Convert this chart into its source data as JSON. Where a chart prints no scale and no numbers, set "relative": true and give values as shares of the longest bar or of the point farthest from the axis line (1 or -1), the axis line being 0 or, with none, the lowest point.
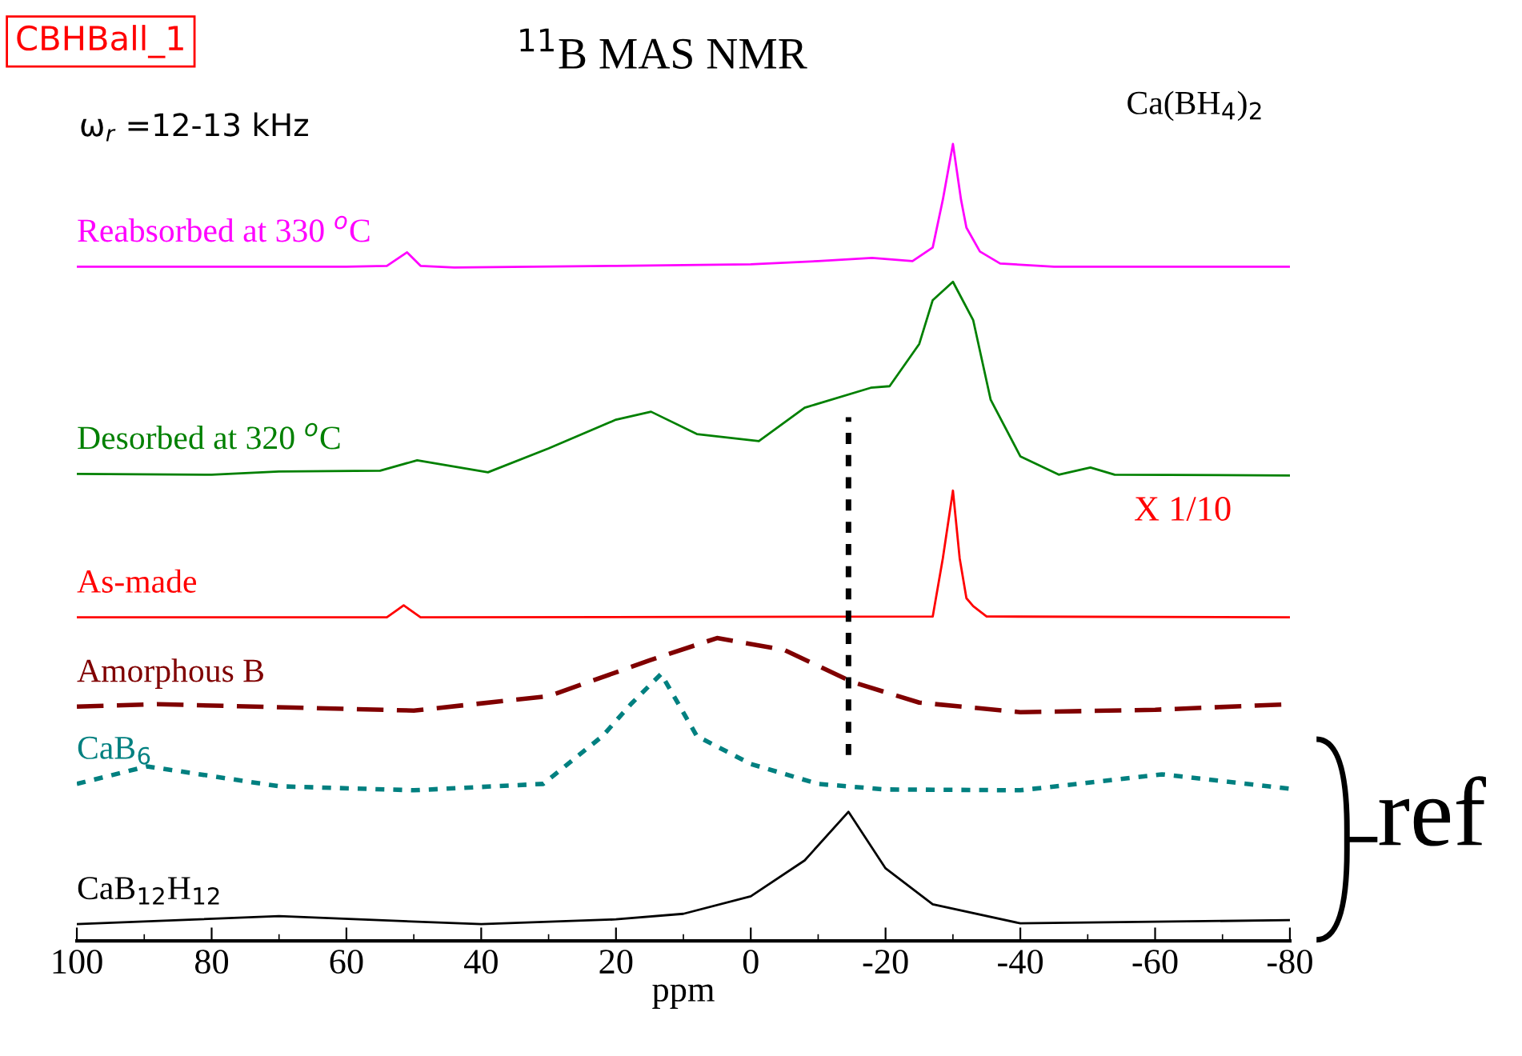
{
  "chart_data": {
    "type": "line",
    "title": "$^{11}$B MAS NMR",
    "xlabel": "ppm",
    "relative": true,
    "xlim": [
      100,
      -80
    ],
    "xticks": [
      100,
      80,
      60,
      40,
      20,
      0,
      -20,
      -40,
      -60,
      -80
    ],
    "tick_labels": "x",
    "grid": false,
    "legend": false,
    "marker": "none",
    "annotations": [
      "CBHBall_1",
      "ω$_{r}$ =12-13 kHz",
      "Ca(BH$_{4}$)$_{2}$",
      "X 1/10",
      "ref"
    ],
    "ref_lines": [
      {
        "axis": "x",
        "value": -14.5,
        "color": "#000000",
        "line_style": "dotted"
      }
    ],
    "series": [
      {
        "name": "Reabsorbed at 330 $^{o}$C",
        "color": "#ff00ff",
        "line_style": "solid",
        "x": [
          100,
          60,
          54,
          51,
          49,
          44,
          20,
          0,
          -10,
          -18,
          -24,
          -27,
          -28.5,
          -30,
          -31.2,
          -32,
          -34,
          -37,
          -45,
          -80
        ],
        "values": [
          0.846,
          0.846,
          0.847,
          0.864,
          0.847,
          0.845,
          0.847,
          0.849,
          0.853,
          0.857,
          0.853,
          0.87,
          0.93,
          1.0,
          0.93,
          0.895,
          0.865,
          0.85,
          0.846,
          0.846
        ]
      },
      {
        "name": "Desorbed at 320 $^{o}$C",
        "color": "#008000",
        "line_style": "solid",
        "x": [
          100,
          80,
          70,
          55,
          49.5,
          39,
          30,
          20,
          14.8,
          8,
          -1.2,
          -8,
          -17.8,
          -20.6,
          -25,
          -27,
          -30,
          -33,
          -35.6,
          -40,
          -45.7,
          -50.4,
          -54,
          -80
        ],
        "values": [
          0.586,
          0.585,
          0.589,
          0.59,
          0.603,
          0.588,
          0.618,
          0.654,
          0.664,
          0.636,
          0.627,
          0.669,
          0.694,
          0.696,
          0.749,
          0.804,
          0.827,
          0.779,
          0.679,
          0.608,
          0.585,
          0.594,
          0.585,
          0.584
        ]
      },
      {
        "name": "As-made",
        "color": "#ff0000",
        "line_style": "solid",
        "x": [
          100,
          54,
          51.5,
          49,
          -27,
          -28.5,
          -30,
          -31,
          -32,
          -33,
          -35,
          -80
        ],
        "values": [
          0.406,
          0.406,
          0.421,
          0.406,
          0.407,
          0.48,
          0.565,
          0.48,
          0.43,
          0.42,
          0.407,
          0.406
        ]
      },
      {
        "name": "Amorphous B",
        "color": "#800000",
        "line_style": "dashed",
        "x": [
          100,
          88,
          50,
          30,
          15,
          5,
          -5,
          -15,
          -25,
          -40,
          -60,
          -80
        ],
        "values": [
          0.294,
          0.297,
          0.289,
          0.307,
          0.352,
          0.38,
          0.365,
          0.325,
          0.299,
          0.287,
          0.29,
          0.297
        ]
      },
      {
        "name": "CaB$_{6}$",
        "color": "#008080",
        "line_style": "dotted",
        "x": [
          100,
          89.6,
          70,
          50,
          30.8,
          22,
          17.8,
          13.3,
          8,
          0,
          -10,
          -20,
          -40,
          -61,
          -80
        ],
        "values": [
          0.197,
          0.219,
          0.194,
          0.189,
          0.197,
          0.257,
          0.297,
          0.335,
          0.257,
          0.222,
          0.197,
          0.19,
          0.189,
          0.209,
          0.191
        ]
      },
      {
        "name": "CaB$_{12}$H$_{12}$",
        "color": "#000000",
        "line_style": "solid",
        "x": [
          100,
          70,
          40,
          20,
          10,
          0,
          -8,
          -14.5,
          -20,
          -27,
          -40,
          -80
        ],
        "values": [
          0.021,
          0.031,
          0.021,
          0.027,
          0.034,
          0.056,
          0.101,
          0.162,
          0.091,
          0.046,
          0.022,
          0.026
        ]
      }
    ]
  }
}
